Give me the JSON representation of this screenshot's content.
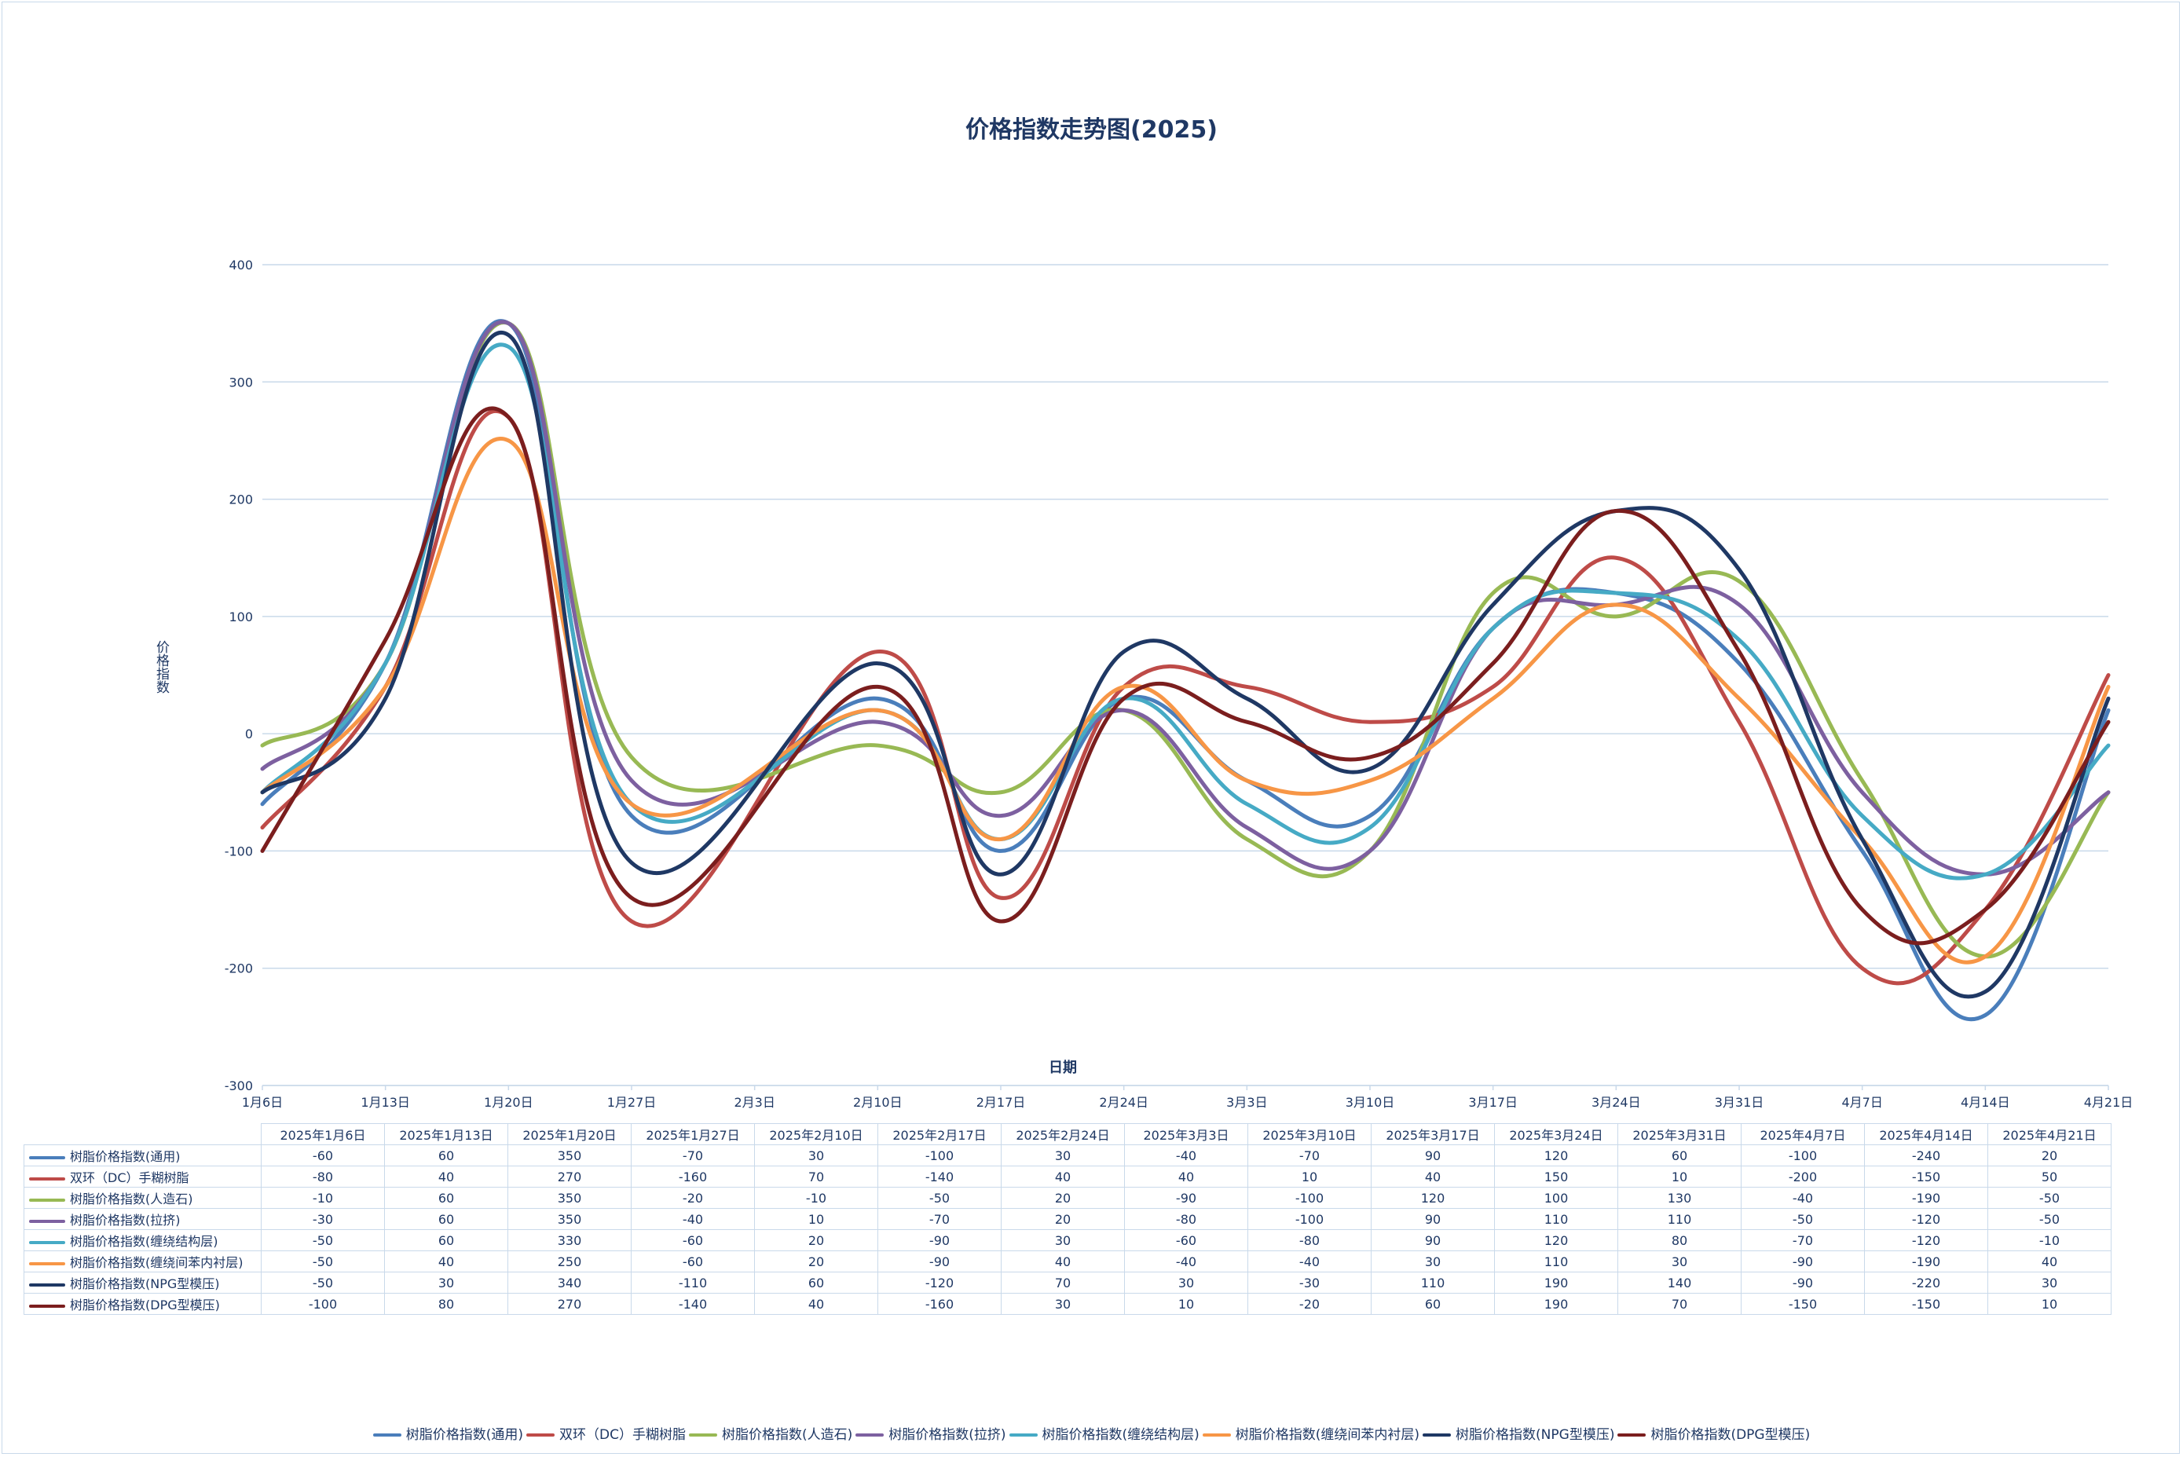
{
  "chart_data": {
    "type": "line",
    "title": "价格指数走势图(2025)",
    "xlabel": "日期",
    "ylabel": "价格指数",
    "ylim": [
      -300,
      400
    ],
    "yticks": [
      400,
      300,
      200,
      100,
      0,
      -100,
      -200,
      -300
    ],
    "grid": true,
    "legend_position": "bottom",
    "x_axis_labels": [
      "1月6日",
      "1月13日",
      "1月20日",
      "1月27日",
      "2月3日",
      "2月10日",
      "2月17日",
      "2月24日",
      "3月3日",
      "3月10日",
      "3月17日",
      "3月24日",
      "3月31日",
      "4月7日",
      "4月14日",
      "4月21日"
    ],
    "categories": [
      "2025年1月6日",
      "2025年1月13日",
      "2025年1月20日",
      "2025年1月27日",
      "2025年2月10日",
      "2025年2月17日",
      "2025年2月24日",
      "2025年3月3日",
      "2025年3月10日",
      "2025年3月17日",
      "2025年3月24日",
      "2025年3月31日",
      "2025年4月7日",
      "2025年4月14日",
      "2025年4月21日"
    ],
    "point_positions": [
      0,
      1,
      2,
      3,
      5,
      6,
      7,
      8,
      9,
      10,
      11,
      12,
      13,
      14,
      15
    ],
    "series": [
      {
        "name": "树脂价格指数(通用)",
        "color": "#4a7ebb",
        "values": [
          -60,
          60,
          350,
          -70,
          30,
          -100,
          30,
          -40,
          -70,
          90,
          120,
          60,
          -100,
          -240,
          20
        ]
      },
      {
        "name": "双环（DC）手糊树脂",
        "color": "#be4b48",
        "values": [
          -80,
          40,
          270,
          -160,
          70,
          -140,
          40,
          40,
          10,
          40,
          150,
          10,
          -200,
          -150,
          50
        ]
      },
      {
        "name": "树脂价格指数(人造石)",
        "color": "#98b954",
        "values": [
          -10,
          60,
          350,
          -20,
          -10,
          -50,
          20,
          -90,
          -100,
          120,
          100,
          130,
          -40,
          -190,
          -50
        ]
      },
      {
        "name": "树脂价格指数(拉挤)",
        "color": "#7d60a0",
        "values": [
          -30,
          60,
          350,
          -40,
          10,
          -70,
          20,
          -80,
          -100,
          90,
          110,
          110,
          -50,
          -120,
          -50
        ]
      },
      {
        "name": "树脂价格指数(缠绕结构层)",
        "color": "#46aac5",
        "values": [
          -50,
          60,
          330,
          -60,
          20,
          -90,
          30,
          -60,
          -80,
          90,
          120,
          80,
          -70,
          -120,
          -10
        ]
      },
      {
        "name": "树脂价格指数(缠绕间苯内衬层)",
        "color": "#f79646",
        "values": [
          -50,
          40,
          250,
          -60,
          20,
          -90,
          40,
          -40,
          -40,
          30,
          110,
          30,
          -90,
          -190,
          40
        ]
      },
      {
        "name": "树脂价格指数(NPG型模压)",
        "color": "#1f3864",
        "values": [
          -50,
          30,
          340,
          -110,
          60,
          -120,
          70,
          30,
          -30,
          110,
          190,
          140,
          -90,
          -220,
          30
        ]
      },
      {
        "name": "树脂价格指数(DPG型模压)",
        "color": "#7b1e1e",
        "values": [
          -100,
          80,
          270,
          -140,
          40,
          -160,
          30,
          10,
          -20,
          60,
          190,
          70,
          -150,
          -150,
          10
        ]
      }
    ]
  }
}
